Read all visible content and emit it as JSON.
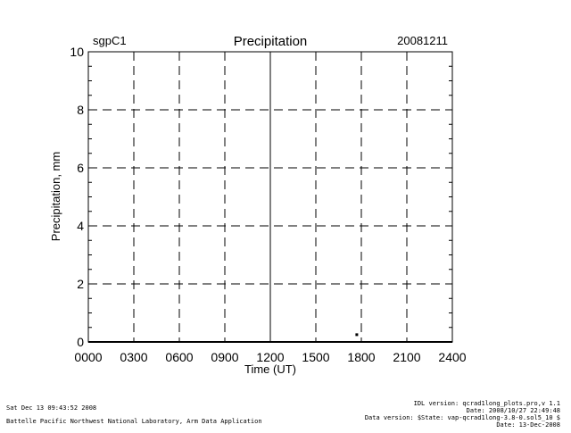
{
  "header": {
    "site": "sgpC1",
    "date": "20081211"
  },
  "footer": {
    "timestamp": "Sat Dec 13 09:43:52 2008",
    "organization": "Battelle Pacific Northwest National Laboratory, Arm Data Application",
    "idl_version": "IDL version: qcrad1long_plots.pro,v 1.1",
    "idl_date": "Date: 2008/10/27 22:49:48",
    "data_version": "Data version: $State: vap-qcrad1long-3.8-0.sol5_10 $",
    "data_date": "Date: 13-Dec-2008"
  },
  "chart_data": {
    "type": "scatter",
    "title": "Precipitation",
    "xlabel": "Time (UT)",
    "ylabel": "Precipitation, mm",
    "x_tick_labels": [
      "0000",
      "0300",
      "0600",
      "0900",
      "1200",
      "1500",
      "1800",
      "2100",
      "2400"
    ],
    "y_tick_labels": [
      "0",
      "2",
      "4",
      "6",
      "8",
      "10"
    ],
    "xlim": [
      0,
      24
    ],
    "ylim": [
      0,
      10
    ],
    "grid": true,
    "colors": {
      "line": "#000000",
      "background": "#ffffff"
    },
    "series": [
      {
        "x": [
          17.7
        ],
        "y": [
          0.25
        ]
      }
    ]
  }
}
